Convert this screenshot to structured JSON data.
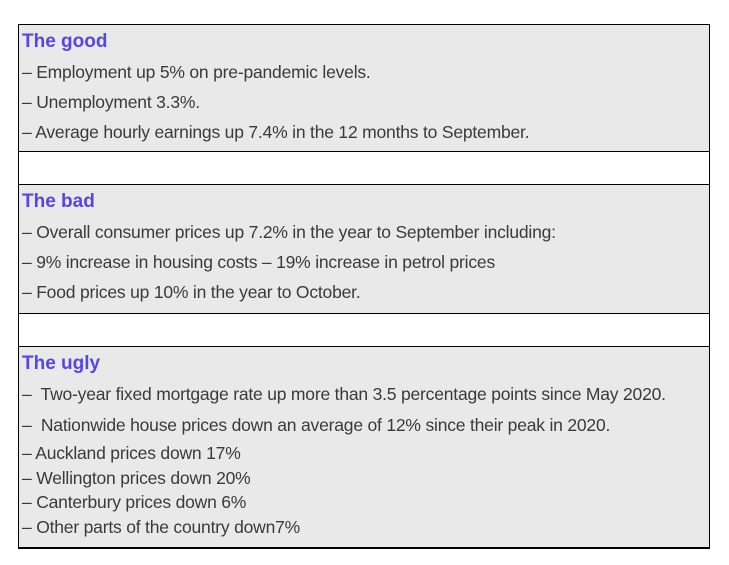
{
  "document": {
    "sections": [
      {
        "title": "The good",
        "items": [
          "– Employment up 5% on pre-pandemic levels.",
          "– Unemployment 3.3%.",
          "– Average hourly earnings up 7.4% in the 12 months to September."
        ]
      },
      {
        "title": "The bad",
        "items": [
          "– Overall consumer prices up 7.2% in the year to September including:",
          "– 9% increase in housing costs – 19% increase in petrol prices",
          "– Food prices up 10% in the year to October."
        ]
      },
      {
        "title": "The ugly",
        "items": [
          "–  Two-year fixed mortgage rate up more than 3.5 percentage points since May 2020.",
          "–  Nationwide house prices down an average of 12% since their peak in 2020.",
          "– Auckland prices down 17%",
          "– Wellington prices down 20%",
          "– Canterbury prices down 6%",
          "– Other parts of the country down7%"
        ]
      }
    ],
    "colors": {
      "heading": "#5645ea",
      "body_text": "#3a3a3a",
      "section_bg": "#e9e9e9",
      "border": "#000000",
      "page_bg": "#ffffff"
    }
  }
}
